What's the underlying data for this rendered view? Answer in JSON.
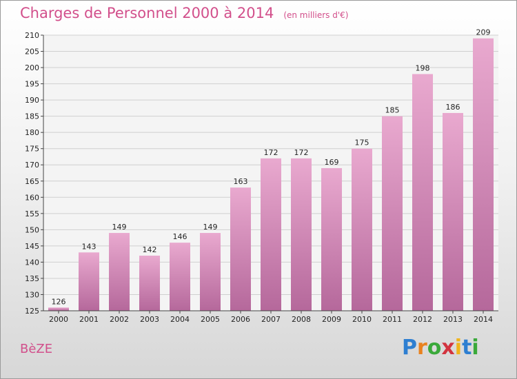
{
  "header": {
    "title": "Charges de Personnel 2000 à 2014",
    "subtitle": "(en milliers d'€)"
  },
  "footer": {
    "commune": "BèZE",
    "brand": "Proxiti",
    "brand_letters": [
      {
        "ch": "P",
        "color": "#2e7fd1"
      },
      {
        "ch": "r",
        "color": "#e9821f"
      },
      {
        "ch": "o",
        "color": "#3aa93a"
      },
      {
        "ch": "x",
        "color": "#d2343f"
      },
      {
        "ch": "i",
        "color": "#f0b41c"
      },
      {
        "ch": "t",
        "color": "#2e7fd1"
      },
      {
        "ch": "i",
        "color": "#3aa93a"
      }
    ]
  },
  "colors": {
    "accent": "#d24f8b",
    "bar_light": "#e9a9cf",
    "bar_dark": "#b5689b"
  },
  "chart_data": {
    "type": "bar",
    "title": "Charges de Personnel 2000 à 2014",
    "subtitle": "(en milliers d'€)",
    "categories": [
      "2000",
      "2001",
      "2002",
      "2003",
      "2004",
      "2005",
      "2006",
      "2007",
      "2008",
      "2009",
      "2010",
      "2011",
      "2012",
      "2013",
      "2014"
    ],
    "values": [
      126,
      143,
      149,
      142,
      146,
      149,
      163,
      172,
      172,
      169,
      175,
      185,
      198,
      186,
      209
    ],
    "ylim": [
      125,
      210
    ],
    "yticks": [
      125,
      130,
      135,
      140,
      145,
      150,
      155,
      160,
      165,
      170,
      175,
      180,
      185,
      190,
      195,
      200,
      205,
      210
    ],
    "grid": true
  }
}
